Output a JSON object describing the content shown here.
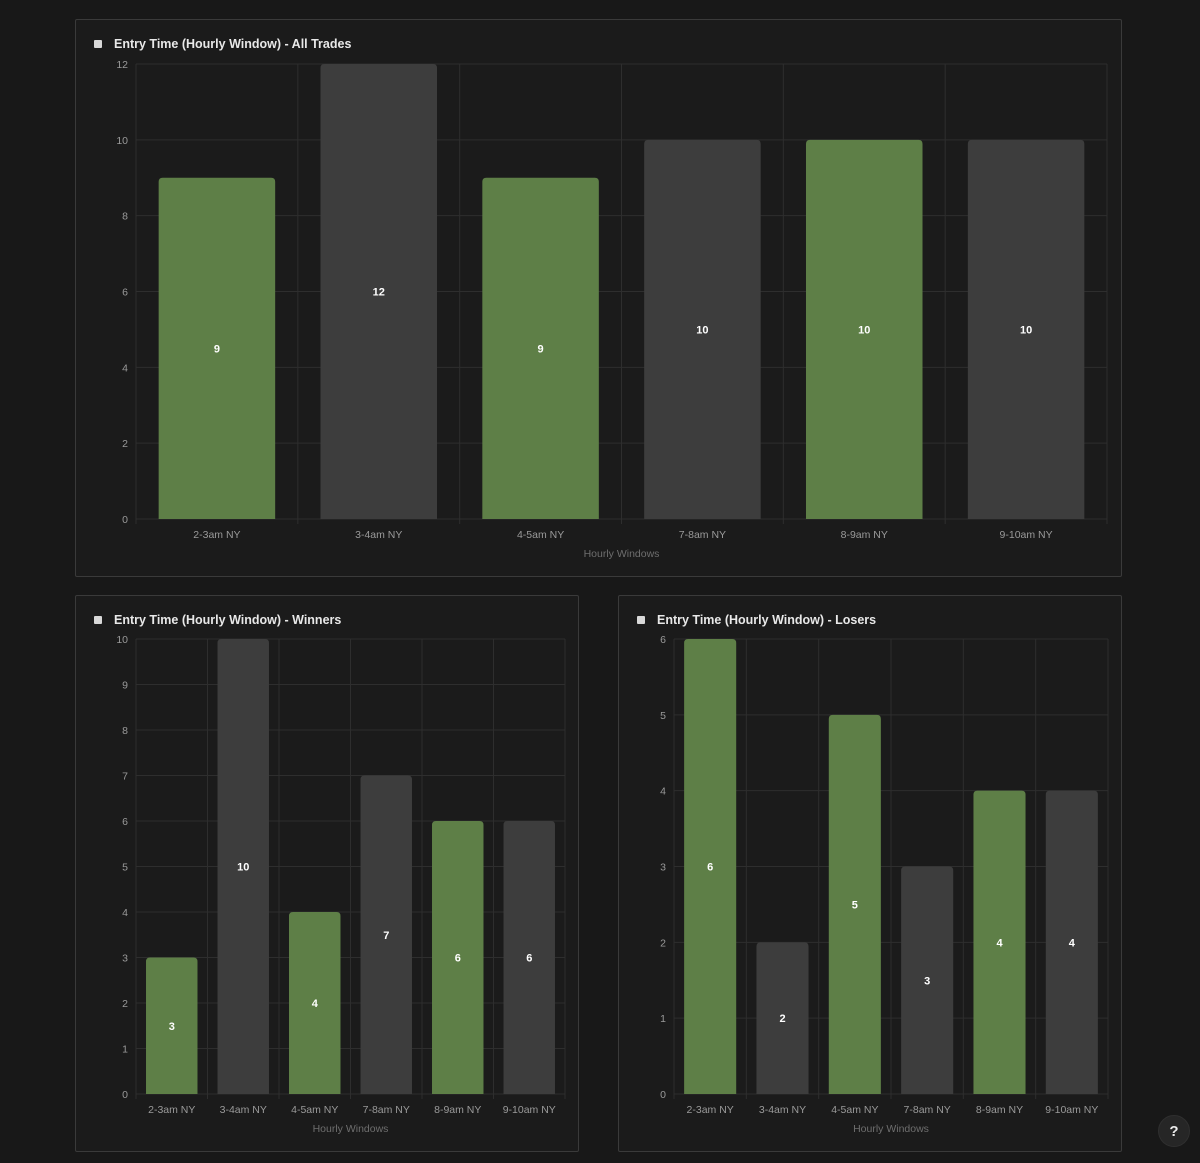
{
  "colors": {
    "green": "#5e7f47",
    "gray": "#3d3d3d",
    "grid": "#2e2e2e",
    "tick": "#9a9a9a",
    "axis_title": "#6e6e6e",
    "value_label": "#ffffff"
  },
  "help": {
    "label": "?"
  },
  "chart_data": [
    {
      "type": "bar",
      "title": "Entry Time (Hourly Window) - All Trades",
      "categories": [
        "2-3am NY",
        "3-4am NY",
        "4-5am NY",
        "7-8am NY",
        "8-9am NY",
        "9-10am NY"
      ],
      "values": [
        9,
        12,
        9,
        10,
        10,
        10
      ],
      "bar_colors": [
        "green",
        "gray",
        "green",
        "gray",
        "green",
        "gray"
      ],
      "xlabel": "Hourly Windows",
      "ylabel": "",
      "ylim": [
        0,
        12
      ],
      "yticks": [
        0,
        2,
        4,
        6,
        8,
        10,
        12
      ],
      "grid": true
    },
    {
      "type": "bar",
      "title": "Entry Time (Hourly Window) - Winners",
      "categories": [
        "2-3am NY",
        "3-4am NY",
        "4-5am NY",
        "7-8am NY",
        "8-9am NY",
        "9-10am NY"
      ],
      "values": [
        3,
        10,
        4,
        7,
        6,
        6
      ],
      "bar_colors": [
        "green",
        "gray",
        "green",
        "gray",
        "green",
        "gray"
      ],
      "xlabel": "Hourly Windows",
      "ylabel": "",
      "ylim": [
        0,
        10
      ],
      "yticks": [
        0,
        1,
        2,
        3,
        4,
        5,
        6,
        7,
        8,
        9,
        10
      ],
      "grid": true
    },
    {
      "type": "bar",
      "title": "Entry Time (Hourly Window) - Losers",
      "categories": [
        "2-3am NY",
        "3-4am NY",
        "4-5am NY",
        "7-8am NY",
        "8-9am NY",
        "9-10am NY"
      ],
      "values": [
        6,
        2,
        5,
        3,
        4,
        4
      ],
      "bar_colors": [
        "green",
        "gray",
        "green",
        "gray",
        "green",
        "gray"
      ],
      "xlabel": "Hourly Windows",
      "ylabel": "",
      "ylim": [
        0,
        6
      ],
      "yticks": [
        0,
        1,
        2,
        3,
        4,
        5,
        6
      ],
      "grid": true
    }
  ]
}
